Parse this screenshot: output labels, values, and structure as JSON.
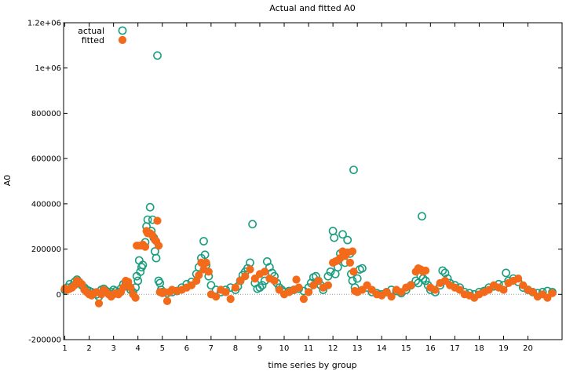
{
  "chart_data": {
    "type": "scatter",
    "title": "Actual and fitted A0",
    "xlabel": "time series by group",
    "ylabel": "A0",
    "xlim": [
      0.95,
      21.4
    ],
    "ylim": [
      -200000,
      1200000
    ],
    "y_ticks": [
      -200000,
      0,
      200000,
      400000,
      600000,
      800000,
      1000000,
      1200000
    ],
    "y_tick_labels": [
      "-200000",
      "0",
      "200000",
      "400000",
      "600000",
      "800000",
      "1e+06",
      "1.2e+06"
    ],
    "x_ticks": [
      1,
      2,
      3,
      4,
      5,
      6,
      7,
      8,
      9,
      10,
      11,
      12,
      13,
      14,
      15,
      16,
      17,
      18,
      19,
      20
    ],
    "x_tick_labels": [
      "1",
      "2",
      "3",
      "4",
      "5",
      "6",
      "7",
      "8",
      "9",
      "10",
      "11",
      "12",
      "13",
      "14",
      "15",
      "16",
      "17",
      "18",
      "19",
      "20"
    ],
    "zero_line": true,
    "grid": false,
    "legend": "top-left",
    "colors": {
      "actual": "#1a9e80",
      "fitted": "#f36a1a"
    },
    "series": [
      {
        "name": "actual",
        "marker": "open-circle",
        "points": [
          [
            1.0,
            20000
          ],
          [
            1.1,
            30000
          ],
          [
            1.2,
            45000
          ],
          [
            1.3,
            35000
          ],
          [
            1.4,
            55000
          ],
          [
            1.5,
            65000
          ],
          [
            1.6,
            50000
          ],
          [
            1.7,
            40000
          ],
          [
            1.8,
            30000
          ],
          [
            1.9,
            20000
          ],
          [
            2.0,
            15000
          ],
          [
            2.1,
            10000
          ],
          [
            2.2,
            5000
          ],
          [
            2.3,
            0
          ],
          [
            2.4,
            -10000
          ],
          [
            2.5,
            20000
          ],
          [
            2.6,
            25000
          ],
          [
            2.7,
            15000
          ],
          [
            2.8,
            5000
          ],
          [
            2.9,
            10000
          ],
          [
            3.0,
            20000
          ],
          [
            3.1,
            15000
          ],
          [
            3.2,
            10000
          ],
          [
            3.3,
            25000
          ],
          [
            3.4,
            45000
          ],
          [
            3.5,
            50000
          ],
          [
            3.6,
            35000
          ],
          [
            3.7,
            20000
          ],
          [
            3.8,
            10000
          ],
          [
            3.9,
            30000
          ],
          [
            3.95,
            80000
          ],
          [
            4.0,
            60000
          ],
          [
            4.05,
            150000
          ],
          [
            4.1,
            100000
          ],
          [
            4.15,
            120000
          ],
          [
            4.2,
            130000
          ],
          [
            4.3,
            230000
          ],
          [
            4.35,
            300000
          ],
          [
            4.4,
            330000
          ],
          [
            4.5,
            385000
          ],
          [
            4.55,
            280000
          ],
          [
            4.6,
            330000
          ],
          [
            4.65,
            250000
          ],
          [
            4.7,
            190000
          ],
          [
            4.75,
            160000
          ],
          [
            4.8,
            1055000
          ],
          [
            4.85,
            60000
          ],
          [
            4.9,
            50000
          ],
          [
            4.95,
            20000
          ],
          [
            5.0,
            10000
          ],
          [
            5.2,
            5000
          ],
          [
            5.4,
            10000
          ],
          [
            5.6,
            15000
          ],
          [
            5.8,
            30000
          ],
          [
            6.0,
            45000
          ],
          [
            6.2,
            55000
          ],
          [
            6.4,
            90000
          ],
          [
            6.5,
            120000
          ],
          [
            6.6,
            160000
          ],
          [
            6.7,
            235000
          ],
          [
            6.75,
            175000
          ],
          [
            6.8,
            130000
          ],
          [
            6.9,
            80000
          ],
          [
            7.0,
            40000
          ],
          [
            7.2,
            20000
          ],
          [
            7.4,
            10000
          ],
          [
            7.6,
            20000
          ],
          [
            7.8,
            30000
          ],
          [
            8.0,
            20000
          ],
          [
            8.1,
            35000
          ],
          [
            8.2,
            60000
          ],
          [
            8.3,
            85000
          ],
          [
            8.4,
            100000
          ],
          [
            8.5,
            115000
          ],
          [
            8.6,
            140000
          ],
          [
            8.7,
            310000
          ],
          [
            8.8,
            50000
          ],
          [
            8.9,
            25000
          ],
          [
            9.0,
            30000
          ],
          [
            9.1,
            40000
          ],
          [
            9.2,
            60000
          ],
          [
            9.3,
            145000
          ],
          [
            9.4,
            120000
          ],
          [
            9.5,
            95000
          ],
          [
            9.6,
            80000
          ],
          [
            9.7,
            50000
          ],
          [
            9.8,
            30000
          ],
          [
            9.9,
            20000
          ],
          [
            10.0,
            10000
          ],
          [
            10.2,
            15000
          ],
          [
            10.4,
            20000
          ],
          [
            10.6,
            25000
          ],
          [
            10.8,
            15000
          ],
          [
            11.0,
            30000
          ],
          [
            11.1,
            50000
          ],
          [
            11.2,
            75000
          ],
          [
            11.3,
            80000
          ],
          [
            11.4,
            60000
          ],
          [
            11.5,
            40000
          ],
          [
            11.6,
            20000
          ],
          [
            11.8,
            80000
          ],
          [
            11.9,
            100000
          ],
          [
            12.0,
            280000
          ],
          [
            12.05,
            250000
          ],
          [
            12.1,
            90000
          ],
          [
            12.2,
            120000
          ],
          [
            12.3,
            180000
          ],
          [
            12.4,
            265000
          ],
          [
            12.5,
            140000
          ],
          [
            12.6,
            240000
          ],
          [
            12.7,
            180000
          ],
          [
            12.75,
            90000
          ],
          [
            12.8,
            60000
          ],
          [
            12.85,
            550000
          ],
          [
            12.9,
            30000
          ],
          [
            13.0,
            70000
          ],
          [
            13.1,
            110000
          ],
          [
            13.2,
            115000
          ],
          [
            13.4,
            30000
          ],
          [
            13.6,
            10000
          ],
          [
            13.8,
            5000
          ],
          [
            14.0,
            0
          ],
          [
            14.2,
            10000
          ],
          [
            14.4,
            20000
          ],
          [
            14.6,
            15000
          ],
          [
            14.8,
            5000
          ],
          [
            15.0,
            20000
          ],
          [
            15.2,
            40000
          ],
          [
            15.4,
            60000
          ],
          [
            15.5,
            50000
          ],
          [
            15.6,
            80000
          ],
          [
            15.65,
            345000
          ],
          [
            15.7,
            70000
          ],
          [
            15.8,
            60000
          ],
          [
            15.9,
            40000
          ],
          [
            16.0,
            20000
          ],
          [
            16.2,
            10000
          ],
          [
            16.4,
            40000
          ],
          [
            16.5,
            105000
          ],
          [
            16.6,
            95000
          ],
          [
            16.7,
            70000
          ],
          [
            16.8,
            50000
          ],
          [
            17.0,
            40000
          ],
          [
            17.2,
            30000
          ],
          [
            17.4,
            10000
          ],
          [
            17.6,
            5000
          ],
          [
            17.8,
            0
          ],
          [
            18.0,
            10000
          ],
          [
            18.2,
            15000
          ],
          [
            18.4,
            30000
          ],
          [
            18.6,
            35000
          ],
          [
            18.8,
            45000
          ],
          [
            19.0,
            40000
          ],
          [
            19.1,
            95000
          ],
          [
            19.2,
            60000
          ],
          [
            19.4,
            70000
          ],
          [
            19.6,
            55000
          ],
          [
            19.8,
            30000
          ],
          [
            20.0,
            20000
          ],
          [
            20.2,
            10000
          ],
          [
            20.4,
            5000
          ],
          [
            20.6,
            10000
          ],
          [
            20.8,
            15000
          ],
          [
            21.0,
            10000
          ]
        ]
      },
      {
        "name": "fitted",
        "marker": "filled-circle",
        "points": [
          [
            1.0,
            25000
          ],
          [
            1.1,
            20000
          ],
          [
            1.2,
            25000
          ],
          [
            1.3,
            30000
          ],
          [
            1.4,
            40000
          ],
          [
            1.5,
            60000
          ],
          [
            1.6,
            55000
          ],
          [
            1.7,
            45000
          ],
          [
            1.8,
            20000
          ],
          [
            1.9,
            10000
          ],
          [
            2.0,
            0
          ],
          [
            2.1,
            -5000
          ],
          [
            2.2,
            5000
          ],
          [
            2.3,
            10000
          ],
          [
            2.4,
            -40000
          ],
          [
            2.5,
            0
          ],
          [
            2.6,
            20000
          ],
          [
            2.7,
            10000
          ],
          [
            2.8,
            0
          ],
          [
            2.9,
            -10000
          ],
          [
            3.0,
            0
          ],
          [
            3.1,
            5000
          ],
          [
            3.2,
            0
          ],
          [
            3.3,
            10000
          ],
          [
            3.4,
            30000
          ],
          [
            3.5,
            60000
          ],
          [
            3.6,
            55000
          ],
          [
            3.7,
            30000
          ],
          [
            3.8,
            0
          ],
          [
            3.9,
            -15000
          ],
          [
            3.95,
            215000
          ],
          [
            4.0,
            215000
          ],
          [
            4.1,
            215000
          ],
          [
            4.2,
            220000
          ],
          [
            4.3,
            210000
          ],
          [
            4.35,
            280000
          ],
          [
            4.4,
            270000
          ],
          [
            4.5,
            270000
          ],
          [
            4.55,
            265000
          ],
          [
            4.6,
            260000
          ],
          [
            4.7,
            240000
          ],
          [
            4.75,
            235000
          ],
          [
            4.8,
            325000
          ],
          [
            4.85,
            215000
          ],
          [
            4.9,
            10000
          ],
          [
            5.0,
            5000
          ],
          [
            5.1,
            10000
          ],
          [
            5.2,
            -30000
          ],
          [
            5.3,
            10000
          ],
          [
            5.4,
            20000
          ],
          [
            5.6,
            15000
          ],
          [
            5.8,
            20000
          ],
          [
            6.0,
            30000
          ],
          [
            6.2,
            40000
          ],
          [
            6.4,
            60000
          ],
          [
            6.5,
            85000
          ],
          [
            6.6,
            140000
          ],
          [
            6.7,
            110000
          ],
          [
            6.8,
            140000
          ],
          [
            6.9,
            100000
          ],
          [
            7.0,
            0
          ],
          [
            7.2,
            -10000
          ],
          [
            7.4,
            20000
          ],
          [
            7.6,
            10000
          ],
          [
            7.8,
            -20000
          ],
          [
            8.0,
            30000
          ],
          [
            8.2,
            60000
          ],
          [
            8.4,
            80000
          ],
          [
            8.6,
            110000
          ],
          [
            8.8,
            70000
          ],
          [
            9.0,
            90000
          ],
          [
            9.2,
            100000
          ],
          [
            9.4,
            70000
          ],
          [
            9.6,
            60000
          ],
          [
            9.8,
            20000
          ],
          [
            10.0,
            0
          ],
          [
            10.2,
            10000
          ],
          [
            10.4,
            20000
          ],
          [
            10.5,
            65000
          ],
          [
            10.6,
            30000
          ],
          [
            10.8,
            -20000
          ],
          [
            11.0,
            10000
          ],
          [
            11.2,
            40000
          ],
          [
            11.4,
            60000
          ],
          [
            11.6,
            30000
          ],
          [
            11.8,
            40000
          ],
          [
            12.0,
            140000
          ],
          [
            12.1,
            145000
          ],
          [
            12.2,
            150000
          ],
          [
            12.3,
            160000
          ],
          [
            12.4,
            190000
          ],
          [
            12.5,
            170000
          ],
          [
            12.6,
            185000
          ],
          [
            12.7,
            140000
          ],
          [
            12.8,
            190000
          ],
          [
            12.85,
            100000
          ],
          [
            12.9,
            15000
          ],
          [
            13.0,
            10000
          ],
          [
            13.2,
            20000
          ],
          [
            13.4,
            40000
          ],
          [
            13.6,
            20000
          ],
          [
            13.8,
            0
          ],
          [
            14.0,
            -5000
          ],
          [
            14.2,
            10000
          ],
          [
            14.4,
            -10000
          ],
          [
            14.6,
            20000
          ],
          [
            14.8,
            10000
          ],
          [
            15.0,
            30000
          ],
          [
            15.2,
            40000
          ],
          [
            15.4,
            100000
          ],
          [
            15.5,
            115000
          ],
          [
            15.6,
            110000
          ],
          [
            15.7,
            100000
          ],
          [
            15.8,
            105000
          ],
          [
            16.0,
            30000
          ],
          [
            16.2,
            20000
          ],
          [
            16.4,
            50000
          ],
          [
            16.6,
            60000
          ],
          [
            16.8,
            40000
          ],
          [
            17.0,
            30000
          ],
          [
            17.2,
            20000
          ],
          [
            17.4,
            0
          ],
          [
            17.6,
            -5000
          ],
          [
            17.8,
            -15000
          ],
          [
            18.0,
            0
          ],
          [
            18.2,
            10000
          ],
          [
            18.4,
            20000
          ],
          [
            18.6,
            40000
          ],
          [
            18.8,
            30000
          ],
          [
            19.0,
            20000
          ],
          [
            19.2,
            50000
          ],
          [
            19.4,
            60000
          ],
          [
            19.6,
            70000
          ],
          [
            19.8,
            40000
          ],
          [
            20.0,
            20000
          ],
          [
            20.2,
            10000
          ],
          [
            20.4,
            -10000
          ],
          [
            20.6,
            0
          ],
          [
            20.8,
            -15000
          ],
          [
            21.0,
            5000
          ]
        ]
      }
    ]
  }
}
